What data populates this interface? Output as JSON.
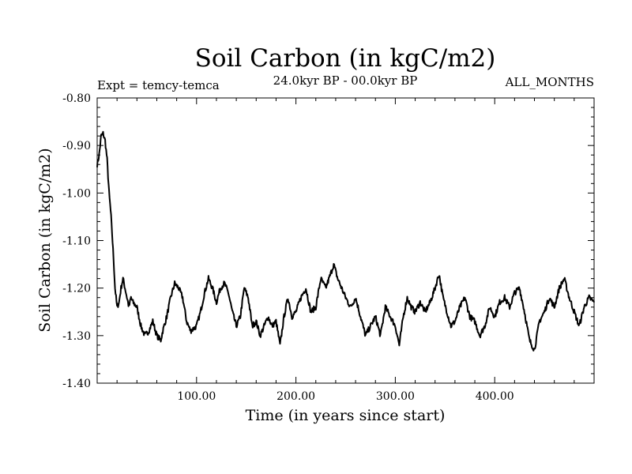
{
  "chart_data": {
    "type": "line",
    "title": "Soil Carbon (in kgC/m2)",
    "expt_label": "Expt = temcy-temca",
    "period_label": "24.0kyr BP - 00.0kyr BP",
    "months_label": "ALL_MONTHS",
    "xlabel": "Time (in years since start)",
    "ylabel": "Soil Carbon (in kgC/m2)",
    "xlim": [
      0,
      500
    ],
    "ylim": [
      -1.4,
      -0.8
    ],
    "x_ticks": [
      100,
      200,
      300,
      400
    ],
    "x_tick_labels": [
      "100.00",
      "200.00",
      "300.00",
      "400.00"
    ],
    "y_ticks": [
      -0.8,
      -0.9,
      -1.0,
      -1.1,
      -1.2,
      -1.3,
      -1.4
    ],
    "y_tick_labels": [
      "-0.80",
      "-0.90",
      "-1.00",
      "-1.10",
      "-1.20",
      "-1.30",
      "-1.40"
    ],
    "grid": false,
    "series": [
      {
        "name": "Soil Carbon",
        "color": "#000000",
        "x": [
          0,
          2,
          4,
          6,
          8,
          10,
          12,
          14,
          16,
          18,
          20,
          22,
          24,
          26,
          28,
          30,
          32,
          34,
          36,
          40,
          44,
          48,
          52,
          56,
          60,
          64,
          66,
          70,
          74,
          78,
          82,
          86,
          90,
          94,
          100,
          104,
          108,
          112,
          116,
          120,
          124,
          128,
          132,
          136,
          140,
          144,
          148,
          152,
          156,
          160,
          164,
          168,
          172,
          176,
          180,
          184,
          188,
          192,
          196,
          200,
          205,
          210,
          215,
          220,
          225,
          230,
          235,
          238,
          242,
          246,
          250,
          255,
          260,
          265,
          270,
          275,
          280,
          285,
          290,
          295,
          300,
          304,
          308,
          312,
          316,
          320,
          325,
          330,
          335,
          340,
          344,
          348,
          352,
          356,
          360,
          365,
          370,
          375,
          380,
          385,
          390,
          395,
          400,
          405,
          410,
          415,
          420,
          425,
          430,
          435,
          440,
          445,
          450,
          455,
          460,
          465,
          470,
          475,
          480,
          485,
          490,
          495,
          500
        ],
        "y": [
          -0.94,
          -0.92,
          -0.88,
          -0.875,
          -0.89,
          -0.93,
          -1.0,
          -1.05,
          -1.12,
          -1.2,
          -1.24,
          -1.23,
          -1.2,
          -1.18,
          -1.2,
          -1.22,
          -1.24,
          -1.22,
          -1.23,
          -1.24,
          -1.28,
          -1.3,
          -1.29,
          -1.27,
          -1.3,
          -1.31,
          -1.29,
          -1.26,
          -1.22,
          -1.19,
          -1.2,
          -1.22,
          -1.27,
          -1.29,
          -1.28,
          -1.25,
          -1.21,
          -1.18,
          -1.2,
          -1.23,
          -1.2,
          -1.19,
          -1.21,
          -1.25,
          -1.28,
          -1.26,
          -1.2,
          -1.22,
          -1.28,
          -1.27,
          -1.3,
          -1.28,
          -1.26,
          -1.28,
          -1.27,
          -1.32,
          -1.26,
          -1.22,
          -1.26,
          -1.25,
          -1.22,
          -1.2,
          -1.25,
          -1.24,
          -1.18,
          -1.2,
          -1.17,
          -1.15,
          -1.18,
          -1.2,
          -1.22,
          -1.24,
          -1.22,
          -1.26,
          -1.3,
          -1.28,
          -1.26,
          -1.3,
          -1.24,
          -1.26,
          -1.28,
          -1.32,
          -1.26,
          -1.22,
          -1.24,
          -1.25,
          -1.23,
          -1.25,
          -1.23,
          -1.2,
          -1.17,
          -1.22,
          -1.25,
          -1.28,
          -1.27,
          -1.24,
          -1.22,
          -1.26,
          -1.27,
          -1.3,
          -1.28,
          -1.24,
          -1.26,
          -1.23,
          -1.22,
          -1.24,
          -1.21,
          -1.2,
          -1.25,
          -1.31,
          -1.33,
          -1.27,
          -1.25,
          -1.22,
          -1.24,
          -1.2,
          -1.18,
          -1.22,
          -1.25,
          -1.28,
          -1.24,
          -1.22,
          -1.23
        ]
      }
    ]
  }
}
